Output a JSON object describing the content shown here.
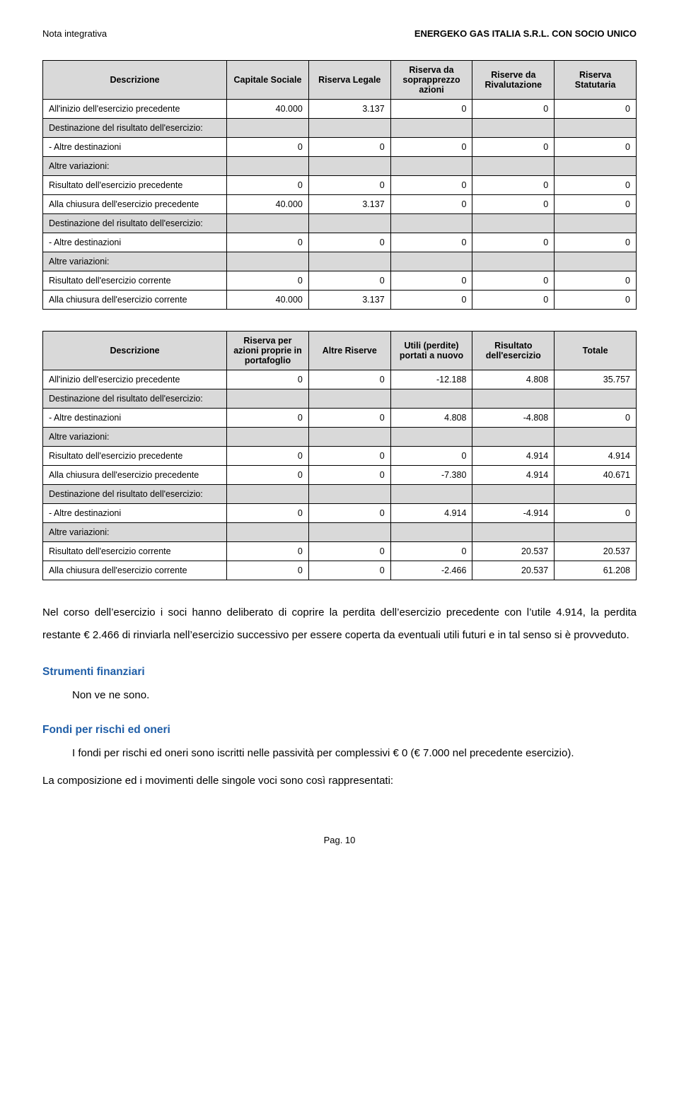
{
  "header": {
    "left": "Nota integrativa",
    "right": "ENERGEKO GAS ITALIA S.R.L. CON SOCIO UNICO"
  },
  "table1": {
    "columns": [
      "Descrizione",
      "Capitale Sociale",
      "Riserva Legale",
      "Riserva da soprapprezzo azioni",
      "Riserve da Rivalutazione",
      "Riserva Statutaria"
    ],
    "rows": [
      {
        "label": "All'inizio dell'esercizio precedente",
        "vals": [
          "40.000",
          "3.137",
          "0",
          "0",
          "0"
        ],
        "gray": false
      },
      {
        "label": "Destinazione del risultato dell'esercizio:",
        "vals": [
          "",
          "",
          "",
          "",
          ""
        ],
        "gray": true
      },
      {
        "label": "- Altre destinazioni",
        "vals": [
          "0",
          "0",
          "0",
          "0",
          "0"
        ],
        "gray": false
      },
      {
        "label": "Altre variazioni:",
        "vals": [
          "",
          "",
          "",
          "",
          ""
        ],
        "gray": true
      },
      {
        "label": "Risultato dell'esercizio precedente",
        "vals": [
          "0",
          "0",
          "0",
          "0",
          "0"
        ],
        "gray": false
      },
      {
        "label": "Alla chiusura dell'esercizio precedente",
        "vals": [
          "40.000",
          "3.137",
          "0",
          "0",
          "0"
        ],
        "gray": false
      },
      {
        "label": "Destinazione del risultato dell'esercizio:",
        "vals": [
          "",
          "",
          "",
          "",
          ""
        ],
        "gray": true
      },
      {
        "label": "- Altre destinazioni",
        "vals": [
          "0",
          "0",
          "0",
          "0",
          "0"
        ],
        "gray": false
      },
      {
        "label": "Altre variazioni:",
        "vals": [
          "",
          "",
          "",
          "",
          ""
        ],
        "gray": true
      },
      {
        "label": "Risultato dell'esercizio corrente",
        "vals": [
          "0",
          "0",
          "0",
          "0",
          "0"
        ],
        "gray": false
      },
      {
        "label": "Alla chiusura dell'esercizio corrente",
        "vals": [
          "40.000",
          "3.137",
          "0",
          "0",
          "0"
        ],
        "gray": false
      }
    ]
  },
  "table2": {
    "columns": [
      "Descrizione",
      "Riserva per azioni proprie in portafoglio",
      "Altre Riserve",
      "Utili (perdite) portati a nuovo",
      "Risultato dell'esercizio",
      "Totale"
    ],
    "rows": [
      {
        "label": "All'inizio dell'esercizio precedente",
        "vals": [
          "0",
          "0",
          "-12.188",
          "4.808",
          "35.757"
        ],
        "gray": false
      },
      {
        "label": "Destinazione del risultato dell'esercizio:",
        "vals": [
          "",
          "",
          "",
          "",
          ""
        ],
        "gray": true
      },
      {
        "label": "- Altre destinazioni",
        "vals": [
          "0",
          "0",
          "4.808",
          "-4.808",
          "0"
        ],
        "gray": false
      },
      {
        "label": "Altre variazioni:",
        "vals": [
          "",
          "",
          "",
          "",
          ""
        ],
        "gray": true
      },
      {
        "label": "Risultato dell'esercizio precedente",
        "vals": [
          "0",
          "0",
          "0",
          "4.914",
          "4.914"
        ],
        "gray": false
      },
      {
        "label": "Alla chiusura dell'esercizio precedente",
        "vals": [
          "0",
          "0",
          "-7.380",
          "4.914",
          "40.671"
        ],
        "gray": false
      },
      {
        "label": "Destinazione del risultato dell'esercizio:",
        "vals": [
          "",
          "",
          "",
          "",
          ""
        ],
        "gray": true
      },
      {
        "label": "- Altre destinazioni",
        "vals": [
          "0",
          "0",
          "4.914",
          "-4.914",
          "0"
        ],
        "gray": false
      },
      {
        "label": "Altre variazioni:",
        "vals": [
          "",
          "",
          "",
          "",
          ""
        ],
        "gray": true
      },
      {
        "label": "Risultato dell'esercizio corrente",
        "vals": [
          "0",
          "0",
          "0",
          "20.537",
          "20.537"
        ],
        "gray": false
      },
      {
        "label": "Alla chiusura dell'esercizio corrente",
        "vals": [
          "0",
          "0",
          "-2.466",
          "20.537",
          "61.208"
        ],
        "gray": false
      }
    ]
  },
  "body_text": "Nel corso dell’esercizio i soci hanno deliberato di coprire la perdita dell’esercizio precedente con l’utile 4.914, la perdita restante € 2.466 di rinviarla nell’esercizio successivo per essere coperta da eventuali utili futuri e in tal senso si è provveduto.",
  "section1": {
    "title": "Strumenti finanziari",
    "text": "Non ve ne sono."
  },
  "section2": {
    "title": "Fondi per rischi ed oneri",
    "text1": "I fondi per rischi ed oneri sono iscritti nelle passività per complessivi € 0 (€ 7.000 nel precedente esercizio).",
    "text2": "La composizione ed i movimenti delle singole voci sono così rappresentati:"
  },
  "footer": "Pag. 10",
  "col_widths": {
    "c0": "31%",
    "c1": "13.8%",
    "c2": "13.8%",
    "c3": "13.8%",
    "c4": "13.8%",
    "c5": "13.8%"
  }
}
